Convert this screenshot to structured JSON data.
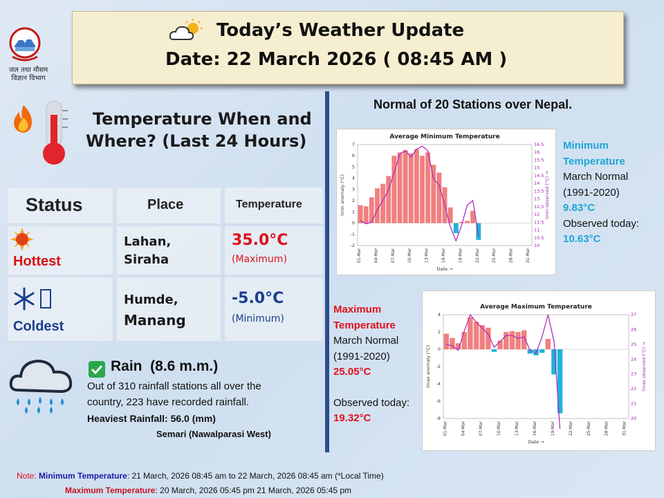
{
  "header": {
    "title": "Today’s Weather Update",
    "date_label": "Date: 22 March 2026  ( 08:45 AM )"
  },
  "logo": {
    "caption_line1": "जल तथा मौसम",
    "caption_line2": "विज्ञान विभाग"
  },
  "temperature_section": {
    "title_line1": "Temperature When and",
    "title_line2": "Where?  (Last 24 Hours)"
  },
  "table": {
    "headers": {
      "status": "Status",
      "place": "Place",
      "temperature": "Temperature"
    },
    "hottest": {
      "status": "Hottest",
      "place_line1": "Lahan,",
      "place_line2": "Siraha",
      "value": "35.0°C",
      "qualifier": "(Maximum)"
    },
    "coldest": {
      "status": "Coldest",
      "place_line1": "Humde,",
      "place_line2": "Manang",
      "value": "-5.0°C",
      "qualifier": "(Minimum)"
    }
  },
  "rain": {
    "title": "Rain  (8.6 m.m.)",
    "line1": "Out of 310 rainfall stations all over the",
    "line2": "country, 223 have recorded rainfall.",
    "heaviest": "Heaviest Rainfall: 56.0 (mm)",
    "station": "Semari (Nawalparasi West)"
  },
  "normals_title": "Normal of 20 Stations over Nepal.",
  "min_panel": {
    "title1": "Minimum",
    "title2": "Temperature",
    "normal_label": "March Normal",
    "period": "(1991-2020)",
    "normal_value": "9.83°C",
    "observed_label": "Observed today:",
    "observed_value": "10.63°C"
  },
  "max_panel": {
    "title1": "Maximum",
    "title2": "Temperature",
    "normal_label": "March Normal",
    "period": "(1991-2020)",
    "normal_value": "25.05°C",
    "observed_label": "Observed today:",
    "observed_value": "19.32°C"
  },
  "note": {
    "prefix": "Note: ",
    "min_label": "Minimum Temperature",
    "min_text": ": 21 March, 2026  08:45 am  to 22 March, 2026  08:45 am (*Local Time)",
    "max_label": "Maximum Temperature",
    "max_text": ":  20 March, 2026  05:45 pm  21 March, 2026  05:45 pm"
  },
  "colors": {
    "bar_pos": "#f08080",
    "bar_neg": "#1eb4d9",
    "line": "#b030c0",
    "accent_blue": "#1ea5d6",
    "accent_red": "#e0101a"
  },
  "chart_data": [
    {
      "type": "bar",
      "title": "Average Minimum Temperature",
      "xlabel": "Date →",
      "ylabel": "tmin anomaly (°C)",
      "y2label": "tmin observed (°C) →",
      "ylim": [
        -2,
        7
      ],
      "y2lim": [
        10,
        16.5
      ],
      "yticks": [
        -2,
        -1,
        0,
        1,
        2,
        3,
        4,
        5,
        6,
        7
      ],
      "y2ticks": [
        "10",
        "10.5",
        "11",
        "11.5",
        "12",
        "12.5",
        "13",
        "13.5",
        "14",
        "14.5",
        "15",
        "15.5",
        "16",
        "16.5"
      ],
      "xticks": [
        "01-Mar",
        "04-Mar",
        "07-Mar",
        "10-Mar",
        "13-Mar",
        "16-Mar",
        "19-Mar",
        "22-Mar",
        "25-Mar",
        "28-Mar",
        "31-Mar"
      ],
      "anomaly": [
        1.6,
        1.5,
        2.3,
        3.1,
        3.5,
        4.2,
        6.0,
        6.3,
        6.5,
        6.2,
        6.6,
        6.0,
        6.3,
        5.2,
        4.5,
        3.2,
        1.4,
        -0.9,
        0.1,
        0.2,
        1.1,
        -1.5
      ],
      "observed": [
        11.6,
        11.4,
        11.5,
        12.3,
        12.9,
        13.6,
        14.7,
        15.9,
        16.1,
        15.7,
        16.2,
        16.4,
        16.1,
        14.3,
        13.9,
        12.6,
        11.2,
        10.3,
        11.3,
        12.6,
        12.9,
        10.6
      ]
    },
    {
      "type": "bar",
      "title": "Average Maximum Temperature",
      "xlabel": "Date →",
      "ylabel": "tmax anomaly (°C)",
      "y2label": "tmax observed (°C) →",
      "ylim": [
        -8,
        4
      ],
      "y2lim": [
        20,
        27
      ],
      "yticks": [
        -8,
        -6,
        -4,
        -2,
        0,
        2,
        4
      ],
      "y2ticks": [
        "20",
        "21",
        "22",
        "23",
        "24",
        "25",
        "26",
        "27"
      ],
      "xticks": [
        "01-Mar",
        "04-Mar",
        "07-Mar",
        "10-Mar",
        "13-Mar",
        "16-Mar",
        "19-Mar",
        "22-Mar",
        "25-Mar",
        "28-Mar",
        "31-Mar"
      ],
      "anomaly": [
        1.8,
        1.3,
        0.7,
        2.0,
        3.7,
        3.2,
        2.8,
        2.5,
        -0.3,
        1.0,
        2.0,
        2.1,
        2.0,
        2.2,
        -0.5,
        -0.7,
        -0.4,
        1.2,
        -2.9,
        -7.4
      ],
      "observed": [
        25.0,
        24.9,
        24.6,
        25.9,
        27.0,
        26.5,
        26.1,
        25.7,
        24.8,
        25.2,
        25.6,
        25.6,
        25.4,
        25.5,
        24.6,
        24.4,
        25.5,
        27.0,
        25.2,
        19.3
      ]
    }
  ]
}
